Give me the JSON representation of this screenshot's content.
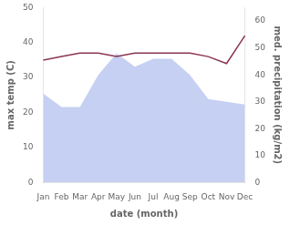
{
  "chart_data": {
    "type": "line",
    "xlabel": "date (month)",
    "ylabel": "max temp (C)",
    "y2label": "med. precipitation (kg/m2)",
    "categories": [
      "Jan",
      "Feb",
      "Mar",
      "Apr",
      "May",
      "Jun",
      "Jul",
      "Aug",
      "Sep",
      "Oct",
      "Nov",
      "Dec"
    ],
    "series": [
      {
        "type": "area",
        "color": "#b3c0ee",
        "axis": "y2",
        "values": [
          33,
          28,
          28,
          40,
          48,
          43,
          46,
          46,
          40,
          31,
          30,
          29
        ]
      },
      {
        "type": "line",
        "color": "#8b3552",
        "values": [
          35,
          36,
          37,
          37,
          36,
          37,
          37,
          37,
          37,
          36,
          34,
          42
        ]
      }
    ],
    "ylim": [
      0,
      50
    ],
    "yticks": [
      0,
      10,
      20,
      30,
      40,
      50
    ],
    "y2lim": [
      0,
      65
    ],
    "y2ticks": [
      0,
      10,
      20,
      30,
      40,
      50,
      60
    ],
    "grid": false
  }
}
